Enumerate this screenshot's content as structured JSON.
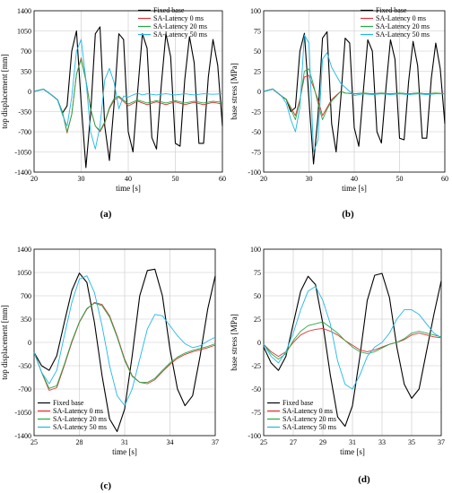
{
  "series_names": [
    "Fixed base",
    "SA-Latency 0 ms",
    "SA-Latency 20 ms",
    "SA-Latency 50 ms"
  ],
  "colors": {
    "fixed": "#000000",
    "sa0": "#e03030",
    "sa20": "#22aa44",
    "sa50": "#1fb8e8",
    "grid": "#c8c8c8"
  },
  "panels": [
    "(a)",
    "(b)",
    "(c)",
    "(d)"
  ],
  "chart_data": [
    {
      "type": "line",
      "panel_label": "(a)",
      "xlabel": "time [s]",
      "ylabel": "top displacement [mm]",
      "xlim": [
        20,
        60
      ],
      "ylim": [
        -1400,
        1400
      ],
      "x_ticks": [
        20,
        30,
        40,
        50,
        60
      ],
      "y_ticks": [
        -1400,
        -1050,
        -700,
        -350,
        0,
        350,
        700,
        1050,
        1400
      ],
      "grid": true,
      "legend_position": "top-right",
      "series": [
        {
          "name": "Fixed base",
          "x": [
            20,
            22,
            24,
            25,
            26,
            27,
            28,
            29,
            30,
            31,
            32,
            33,
            34,
            35,
            36,
            37,
            38,
            39,
            40,
            41,
            42,
            43,
            44,
            45,
            46,
            47,
            48,
            49,
            50,
            51,
            52,
            53,
            54,
            55,
            56,
            57,
            58,
            59,
            60
          ],
          "y": [
            0,
            40,
            -80,
            -150,
            -380,
            -250,
            700,
            1050,
            -200,
            -1320,
            -400,
            1000,
            1120,
            -600,
            -1200,
            -200,
            1000,
            900,
            -700,
            -1050,
            0,
            1000,
            750,
            -800,
            -1000,
            100,
            1000,
            600,
            -900,
            -950,
            200,
            950,
            500,
            -900,
            -900,
            250,
            900,
            450,
            -600
          ]
        },
        {
          "name": "SA-Latency 0 ms",
          "x": [
            20,
            22,
            24,
            25,
            26,
            27,
            28,
            29,
            30,
            31,
            32,
            33,
            34,
            35,
            36,
            37,
            38,
            40,
            42,
            44,
            46,
            48,
            50,
            52,
            54,
            56,
            58,
            60
          ],
          "y": [
            0,
            40,
            -80,
            -150,
            -350,
            -720,
            -400,
            300,
            580,
            200,
            -300,
            -600,
            -700,
            -550,
            -300,
            -150,
            -100,
            -250,
            -170,
            -230,
            -180,
            -230,
            -180,
            -230,
            -190,
            -230,
            -190,
            -220
          ]
        },
        {
          "name": "SA-Latency 20 ms",
          "x": [
            20,
            22,
            24,
            25,
            26,
            27,
            28,
            29,
            30,
            31,
            32,
            33,
            34,
            35,
            36,
            37,
            38,
            40,
            42,
            44,
            46,
            48,
            50,
            52,
            54,
            56,
            58,
            60
          ],
          "y": [
            0,
            40,
            -80,
            -150,
            -350,
            -700,
            -400,
            300,
            560,
            180,
            -300,
            -600,
            -680,
            -530,
            -280,
            -120,
            -80,
            -220,
            -150,
            -200,
            -160,
            -200,
            -160,
            -200,
            -170,
            -200,
            -170,
            -190
          ]
        },
        {
          "name": "SA-Latency 50 ms",
          "x": [
            20,
            22,
            24,
            25,
            26,
            27,
            28,
            29,
            30,
            31,
            32,
            33,
            34,
            35,
            36,
            37,
            38,
            39,
            40,
            41,
            42,
            43,
            44,
            46,
            48,
            50,
            52,
            54,
            56,
            58,
            60
          ],
          "y": [
            0,
            40,
            -80,
            -150,
            -400,
            -600,
            -100,
            700,
            900,
            200,
            -700,
            -1000,
            -600,
            200,
            400,
            150,
            -300,
            -80,
            -100,
            -60,
            -30,
            -60,
            -40,
            -60,
            -40,
            -60,
            -40,
            -60,
            -40,
            -50,
            -40
          ]
        }
      ]
    },
    {
      "type": "line",
      "panel_label": "(b)",
      "xlabel": "time [s]",
      "ylabel": "base stress [MPa]",
      "xlim": [
        20,
        60
      ],
      "ylim": [
        -100,
        100
      ],
      "x_ticks": [
        20,
        30,
        40,
        50,
        60
      ],
      "y_ticks": [
        -100,
        -75,
        -50,
        -25,
        0,
        25,
        50,
        75,
        100
      ],
      "grid": true,
      "legend_position": "top-right",
      "series": [
        {
          "name": "Fixed base",
          "x": [
            20,
            22,
            24,
            25,
            26,
            27,
            28,
            29,
            30,
            31,
            32,
            33,
            34,
            35,
            36,
            37,
            38,
            39,
            40,
            41,
            42,
            43,
            44,
            45,
            46,
            47,
            48,
            49,
            50,
            51,
            52,
            53,
            54,
            55,
            56,
            57,
            58,
            59,
            60
          ],
          "y": [
            0,
            3,
            -6,
            -10,
            -25,
            -20,
            50,
            72,
            -10,
            -90,
            -30,
            66,
            74,
            -40,
            -75,
            -10,
            66,
            60,
            -45,
            -68,
            0,
            64,
            50,
            -50,
            -64,
            5,
            64,
            40,
            -58,
            -60,
            12,
            62,
            32,
            -58,
            -58,
            16,
            60,
            28,
            -40
          ]
        },
        {
          "name": "SA-Latency 0 ms",
          "x": [
            20,
            22,
            24,
            25,
            26,
            27,
            28,
            29,
            30,
            31,
            32,
            33,
            34,
            35,
            36,
            37,
            38,
            40,
            42,
            44,
            46,
            48,
            50,
            52,
            54,
            56,
            58,
            60
          ],
          "y": [
            0,
            3,
            -6,
            -10,
            -20,
            -30,
            -10,
            18,
            20,
            5,
            -10,
            -30,
            -20,
            -10,
            -5,
            0,
            -2,
            -3,
            -2,
            -3,
            -2,
            -3,
            -2,
            -3,
            -2,
            -3,
            -2,
            -3
          ]
        },
        {
          "name": "SA-Latency 20 ms",
          "x": [
            20,
            22,
            24,
            25,
            26,
            27,
            28,
            29,
            30,
            31,
            32,
            33,
            34,
            35,
            36,
            37,
            38,
            40,
            42,
            44,
            46,
            48,
            50,
            52,
            54,
            56,
            58,
            60
          ],
          "y": [
            0,
            3,
            -6,
            -10,
            -22,
            -35,
            -12,
            25,
            28,
            8,
            -15,
            -35,
            -22,
            -12,
            -6,
            0,
            -2,
            -3,
            -2,
            -3,
            -2,
            -3,
            -2,
            -3,
            -2,
            -3,
            -2,
            -3
          ]
        },
        {
          "name": "SA-Latency 50 ms",
          "x": [
            20,
            22,
            24,
            25,
            26,
            27,
            28,
            29,
            30,
            31,
            32,
            33,
            34,
            35,
            36,
            37,
            38,
            40,
            42,
            44,
            46,
            48,
            50,
            52,
            54,
            56,
            58,
            60
          ],
          "y": [
            0,
            3,
            -6,
            -15,
            -35,
            -50,
            -20,
            70,
            60,
            -75,
            -60,
            40,
            48,
            30,
            20,
            10,
            5,
            -5,
            -3,
            -4,
            -3,
            -4,
            -3,
            -4,
            -3,
            -4,
            -3,
            -3
          ]
        }
      ]
    },
    {
      "type": "line",
      "panel_label": "(c)",
      "xlabel": "time [s]",
      "ylabel": "top displacement [mm]",
      "xlim": [
        25,
        37
      ],
      "ylim": [
        -1400,
        1400
      ],
      "x_ticks": [
        25,
        28,
        31,
        34,
        37
      ],
      "y_ticks": [
        -1400,
        -1050,
        -700,
        -350,
        0,
        350,
        700,
        1050,
        1400
      ],
      "grid": true,
      "legend_position": "bottom-left",
      "series": [
        {
          "name": "Fixed base",
          "x": [
            25,
            25.5,
            26,
            26.5,
            27,
            27.5,
            28,
            28.5,
            29,
            29.5,
            30,
            30.5,
            31,
            31.5,
            32,
            32.5,
            33,
            33.5,
            34,
            34.5,
            35,
            35.5,
            36,
            36.5,
            37
          ],
          "y": [
            -150,
            -350,
            -420,
            -200,
            300,
            780,
            1040,
            900,
            300,
            -500,
            -1150,
            -1340,
            -1000,
            -200,
            700,
            1080,
            1100,
            700,
            -100,
            -700,
            -950,
            -800,
            -200,
            500,
            1000
          ]
        },
        {
          "name": "SA-Latency 0 ms",
          "x": [
            25,
            25.5,
            26,
            26.5,
            27,
            27.5,
            28,
            28.5,
            29,
            29.5,
            30,
            30.5,
            31,
            31.5,
            32,
            32.5,
            33,
            33.5,
            34,
            34.5,
            35,
            35.5,
            36,
            36.5,
            37
          ],
          "y": [
            -150,
            -450,
            -720,
            -680,
            -350,
            0,
            300,
            500,
            600,
            570,
            400,
            100,
            -250,
            -500,
            -600,
            -620,
            -560,
            -440,
            -330,
            -240,
            -180,
            -140,
            -110,
            -80,
            -40
          ]
        },
        {
          "name": "SA-Latency 20 ms",
          "x": [
            25,
            25.5,
            26,
            26.5,
            27,
            27.5,
            28,
            28.5,
            29,
            29.5,
            30,
            30.5,
            31,
            31.5,
            32,
            32.5,
            33,
            33.5,
            34,
            34.5,
            35,
            35.5,
            36,
            36.5,
            37
          ],
          "y": [
            -150,
            -450,
            -690,
            -650,
            -330,
            20,
            310,
            510,
            590,
            550,
            380,
            80,
            -270,
            -510,
            -600,
            -600,
            -540,
            -420,
            -310,
            -220,
            -160,
            -120,
            -90,
            -60,
            -20
          ]
        },
        {
          "name": "SA-Latency 50 ms",
          "x": [
            25,
            25.5,
            26,
            26.5,
            27,
            27.5,
            28,
            28.5,
            29,
            29.5,
            30,
            30.5,
            31,
            31.5,
            32,
            32.5,
            33,
            33.5,
            34,
            34.5,
            35,
            35.5,
            36,
            36.5,
            37
          ],
          "y": [
            -150,
            -450,
            -620,
            -420,
            100,
            600,
            950,
            1000,
            750,
            250,
            -350,
            -800,
            -950,
            -700,
            -250,
            200,
            420,
            400,
            250,
            100,
            -20,
            -80,
            -50,
            20,
            80
          ]
        }
      ]
    },
    {
      "type": "line",
      "panel_label": "(d)",
      "xlabel": "time [s]",
      "ylabel": "base stress [MPa]",
      "xlim": [
        25,
        37
      ],
      "ylim": [
        -100,
        100
      ],
      "x_ticks": [
        25,
        27,
        29,
        31,
        33,
        35,
        37
      ],
      "y_ticks": [
        -100,
        -75,
        -50,
        -25,
        0,
        25,
        50,
        75,
        100
      ],
      "grid": true,
      "legend_position": "bottom-left",
      "series": [
        {
          "name": "Fixed base",
          "x": [
            25,
            25.5,
            26,
            26.5,
            27,
            27.5,
            28,
            28.5,
            29,
            29.5,
            30,
            30.5,
            31,
            31.5,
            32,
            32.5,
            33,
            33.5,
            34,
            34.5,
            35,
            35.5,
            36,
            36.5,
            37
          ],
          "y": [
            -5,
            -22,
            -30,
            -15,
            20,
            55,
            71,
            62,
            20,
            -35,
            -80,
            -90,
            -68,
            -15,
            45,
            72,
            74,
            48,
            -5,
            -45,
            -60,
            -50,
            -10,
            30,
            66
          ]
        },
        {
          "name": "SA-Latency 0 ms",
          "x": [
            25,
            25.5,
            26,
            26.5,
            27,
            27.5,
            28,
            28.5,
            29,
            29.5,
            30,
            30.5,
            31,
            31.5,
            32,
            32.5,
            33,
            33.5,
            34,
            34.5,
            35,
            35.5,
            36,
            36.5,
            37
          ],
          "y": [
            -2,
            -10,
            -15,
            -10,
            0,
            8,
            12,
            14,
            15,
            12,
            8,
            2,
            -3,
            -8,
            -10,
            -8,
            -5,
            -2,
            0,
            3,
            8,
            10,
            8,
            6,
            5
          ]
        },
        {
          "name": "SA-Latency 20 ms",
          "x": [
            25,
            25.5,
            26,
            26.5,
            27,
            27.5,
            28,
            28.5,
            29,
            29.5,
            30,
            30.5,
            31,
            31.5,
            32,
            32.5,
            33,
            33.5,
            34,
            34.5,
            35,
            35.5,
            36,
            36.5,
            37
          ],
          "y": [
            -2,
            -12,
            -18,
            -12,
            2,
            12,
            18,
            20,
            22,
            16,
            10,
            2,
            -5,
            -10,
            -12,
            -10,
            -6,
            -2,
            0,
            4,
            10,
            12,
            10,
            8,
            6
          ]
        },
        {
          "name": "SA-Latency 50 ms",
          "x": [
            25,
            25.5,
            26,
            26.5,
            27,
            27.5,
            28,
            28.5,
            29,
            29.5,
            30,
            30.5,
            31,
            31.5,
            32,
            32.5,
            33,
            33.5,
            34,
            34.5,
            35,
            35.5,
            36,
            36.5,
            37
          ],
          "y": [
            -2,
            -15,
            -22,
            -10,
            10,
            35,
            55,
            60,
            45,
            20,
            -20,
            -45,
            -50,
            -35,
            -15,
            -5,
            0,
            10,
            25,
            35,
            35,
            30,
            20,
            10,
            5
          ]
        }
      ]
    }
  ]
}
